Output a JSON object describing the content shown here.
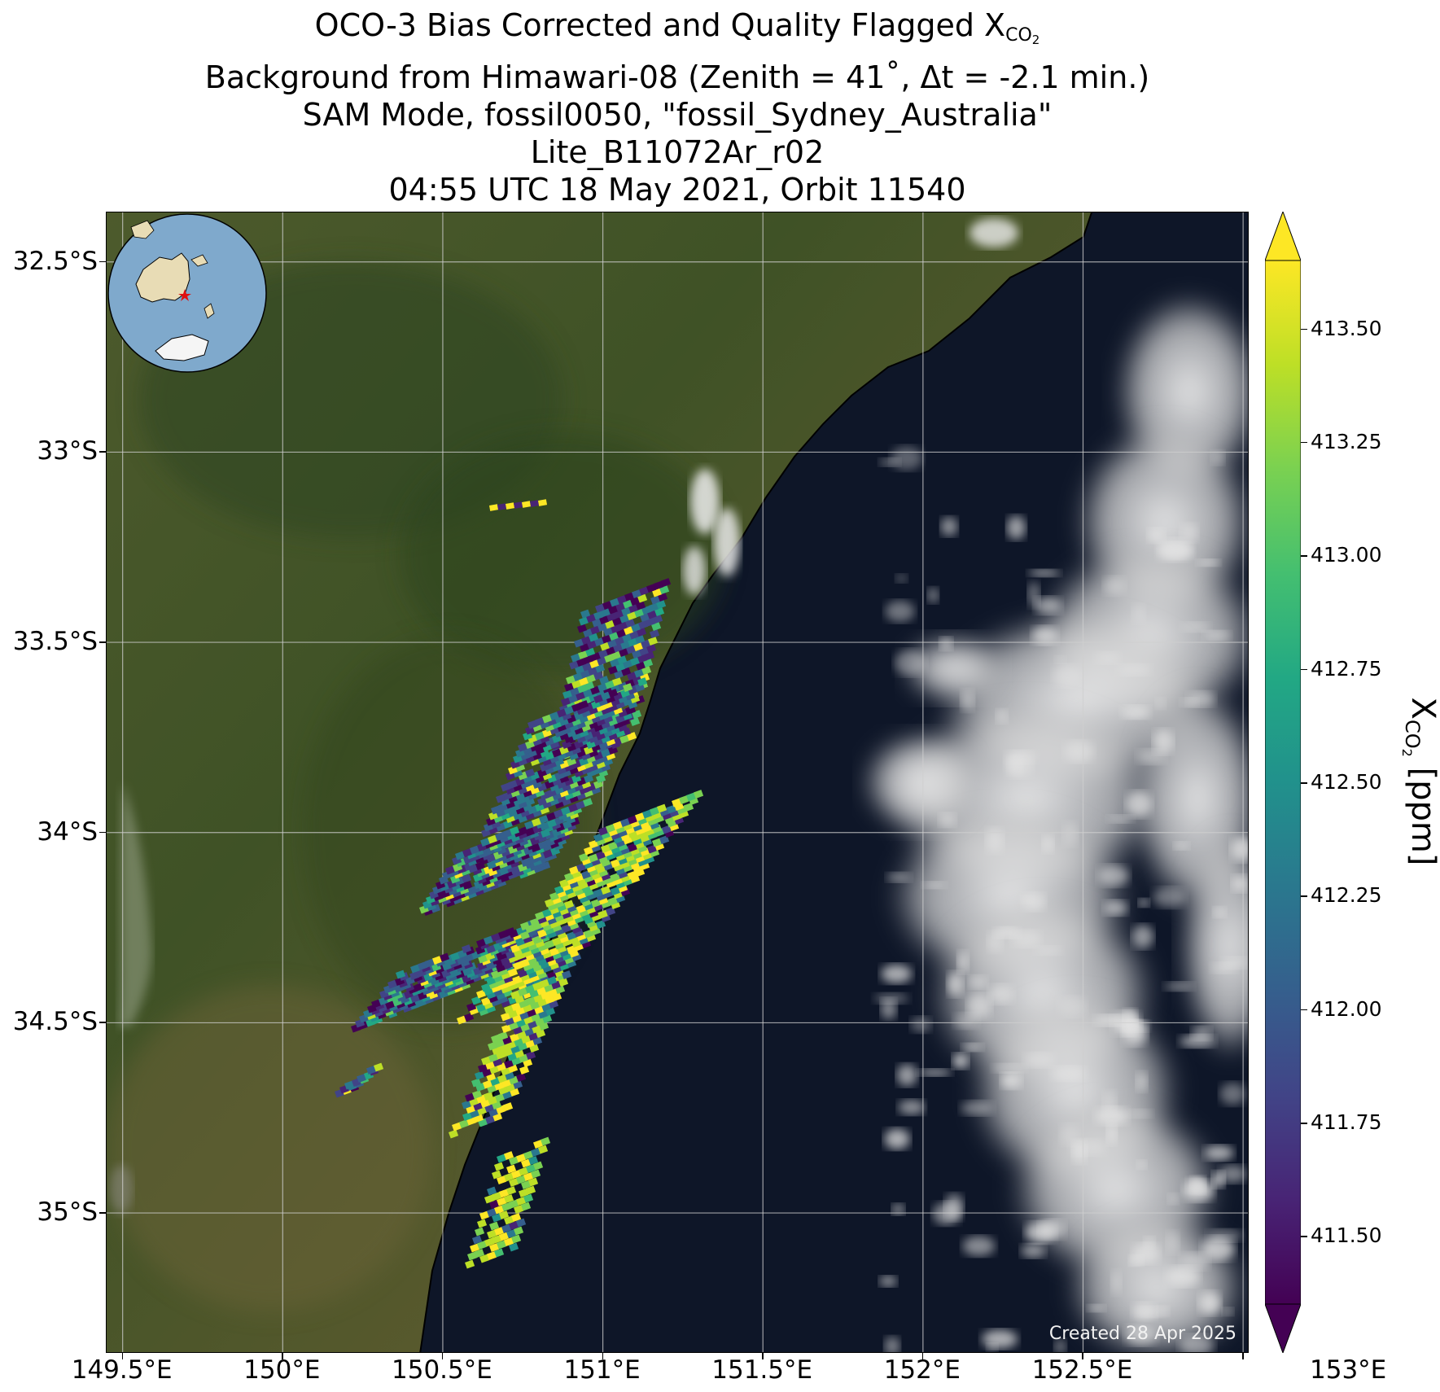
{
  "title": {
    "line1_prefix": "OCO-3 Bias Corrected and Quality Flagged X",
    "line1_sub": "CO",
    "line1_sub2": "2",
    "line2": "Background from Himawari-08 (Zenith = 41˚, Δt = -2.1 min.)",
    "line3": "SAM Mode, fossil0050, \"fossil_Sydney_Australia\"",
    "line4": "Lite_B11072Ar_r02",
    "line5": "04:55 UTC 18 May 2021, Orbit 11540"
  },
  "map": {
    "lat_ticks": [
      "32.5°S",
      "33°S",
      "33.5°S",
      "34°S",
      "34.5°S",
      "35°S"
    ],
    "lon_ticks": [
      "149.5°E",
      "150°E",
      "150.5°E",
      "151°E",
      "151.5°E",
      "152°E",
      "152.5°E",
      "153°E"
    ],
    "lat_values": [
      -32.5,
      -33.0,
      -33.5,
      -34.0,
      -34.5,
      -35.0
    ],
    "lon_values": [
      149.5,
      150.0,
      150.5,
      151.0,
      151.5,
      152.0,
      152.5,
      153.0
    ],
    "lat_range": [
      -35.37,
      -32.37
    ],
    "lon_range": [
      149.45,
      153.02
    ],
    "credit": "Created 28 Apr 2025",
    "land_color": "#4a5a2a",
    "ocean_color": "#0e1628",
    "cloud_color": "#e6e6e6",
    "inset_marker_color": "#e01010",
    "target_city": "fossil_Sydney_Australia"
  },
  "colorbar": {
    "title_main": "X",
    "title_sub": "CO",
    "title_sub2": "2",
    "title_unit": " [ppm]",
    "colormap": "viridis",
    "range": [
      411.35,
      413.65
    ],
    "ticks": [
      "413.50",
      "413.25",
      "413.00",
      "412.75",
      "412.50",
      "412.25",
      "412.00",
      "411.75",
      "411.50"
    ],
    "tick_values": [
      413.5,
      413.25,
      413.0,
      412.75,
      412.5,
      412.25,
      412.0,
      411.75,
      411.5
    ],
    "extend": "both"
  }
}
